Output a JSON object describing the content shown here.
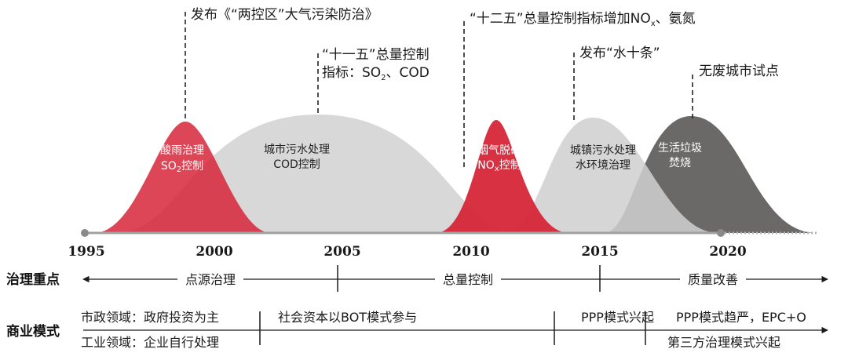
{
  "timeline": {
    "years": [
      "1995",
      "2000",
      "2005",
      "2010",
      "2015",
      "2020"
    ]
  },
  "annotations": {
    "two_control_zones": "发布《“两控区”大气污染防治》",
    "eleventh_fyp_line1": "“十一五”总量控制",
    "eleventh_fyp_line2_prefix": "指标：SO",
    "eleventh_fyp_line2_sub": "2",
    "eleventh_fyp_line2_suffix": "、COD",
    "twelfth_fyp_prefix": "“十二五”总量控制指标增加NO",
    "twelfth_fyp_sub": "x",
    "twelfth_fyp_suffix": "、氨氮",
    "water_ten": "发布“水十条”",
    "zero_waste": "无废城市试点"
  },
  "phases": {
    "acid_rain_line1": "酸雨治理",
    "acid_rain_line2_prefix": "SO",
    "acid_rain_line2_sub": "2",
    "acid_rain_line2_suffix": "控制",
    "urban_sewage_line1": "城市污水处理",
    "urban_sewage_line2": "COD控制",
    "flue_gas_line1": "烟气脱硝",
    "flue_gas_line2_prefix": "NO",
    "flue_gas_line2_sub": "x",
    "flue_gas_line2_suffix": "控制",
    "town_sewage_line1": "城镇污水处理",
    "town_sewage_line2": "水环境治理",
    "waste_line1": "生活垃圾",
    "waste_line2": "焚烧"
  },
  "governance": {
    "heading": "治理重点",
    "stages": [
      "点源治理",
      "总量控制",
      "质量改善"
    ]
  },
  "business": {
    "heading": "商业模式",
    "municipal": "市政领域：政府投资为主",
    "industrial": "工业领域：企业自行处理",
    "bot": "社会资本以BOT模式参与",
    "ppp_rise": "PPP模式兴起",
    "ppp_strict": "PPP模式趋严，EPC+O",
    "third_party": "第三方治理模式兴起"
  },
  "colors": {
    "red": "#d62638",
    "light_gray": "#cfcfcf",
    "dark_gray": "#6b6868",
    "axis": "#a0a0a0"
  }
}
